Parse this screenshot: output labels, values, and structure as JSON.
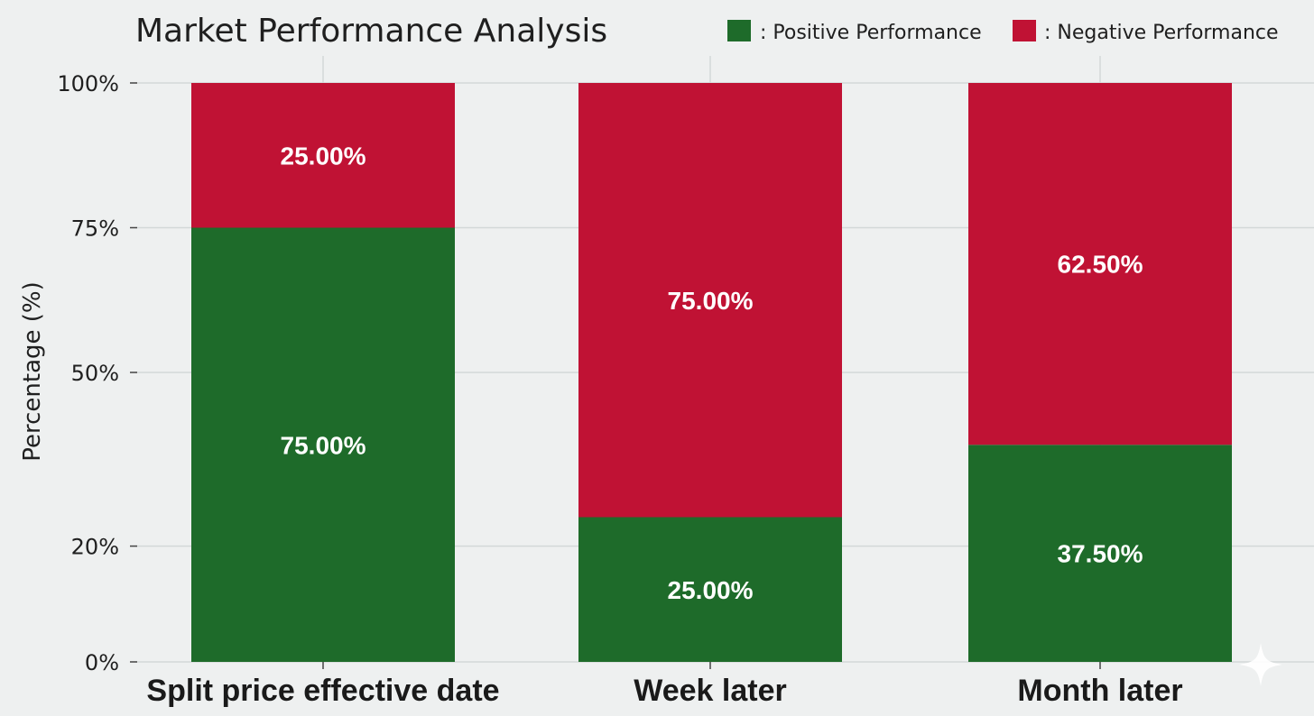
{
  "chart_data": {
    "type": "bar",
    "stacked": true,
    "title": "Market Performance Analysis",
    "xlabel": "",
    "ylabel": "Percentage (%)",
    "categories": [
      "Split price effective date",
      "Week later",
      "Month later"
    ],
    "series": [
      {
        "name": ": Positive Performance",
        "color": "#1e6b2a",
        "values": [
          75.0,
          25.0,
          37.5
        ],
        "labels": [
          "75.00%",
          "25.00%",
          "37.50%"
        ]
      },
      {
        "name": ": Negative Performance",
        "color": "#c01234",
        "values": [
          25.0,
          75.0,
          62.5
        ],
        "labels": [
          "25.00%",
          "75.00%",
          "62.50%"
        ]
      }
    ],
    "y_ticks": [
      {
        "value": 0,
        "label": "0%"
      },
      {
        "value": 20,
        "label": "20%"
      },
      {
        "value": 50,
        "label": "50%"
      },
      {
        "value": 75,
        "label": "75%"
      },
      {
        "value": 100,
        "label": "100%"
      }
    ],
    "ylim": [
      0,
      100
    ],
    "grid": true,
    "legend_position": "top-right"
  }
}
